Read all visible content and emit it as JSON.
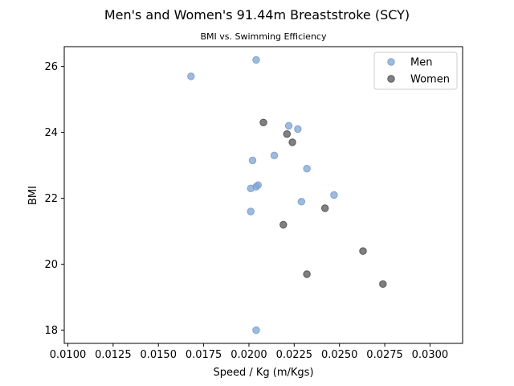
{
  "chart_data": {
    "type": "scatter",
    "title": "Men's and Women's 91.44m Breaststroke (SCY)",
    "subtitle": "BMI vs. Swimming Efficiency",
    "xlabel": "Speed / Kg (m/Kgs)",
    "ylabel": "BMI",
    "xlim": [
      0.0098,
      0.0318
    ],
    "ylim": [
      17.6,
      26.6
    ],
    "xticks": [
      0.01,
      0.0125,
      0.015,
      0.0175,
      0.02,
      0.0225,
      0.025,
      0.0275,
      0.03
    ],
    "xtick_labels": [
      "0.0100",
      "0.0125",
      "0.0150",
      "0.0175",
      "0.0200",
      "0.0225",
      "0.0250",
      "0.0275",
      "0.0300"
    ],
    "yticks": [
      18,
      20,
      22,
      24,
      26
    ],
    "ytick_labels": [
      "18",
      "20",
      "22",
      "24",
      "26"
    ],
    "grid": false,
    "legend_position": "top-right",
    "series": [
      {
        "name": "Men",
        "color": "#7fa3d1",
        "points": [
          {
            "x": 0.0168,
            "y": 25.7
          },
          {
            "x": 0.0204,
            "y": 26.2
          },
          {
            "x": 0.0222,
            "y": 24.2
          },
          {
            "x": 0.0227,
            "y": 24.1
          },
          {
            "x": 0.0214,
            "y": 23.3
          },
          {
            "x": 0.0202,
            "y": 23.15
          },
          {
            "x": 0.0232,
            "y": 22.9
          },
          {
            "x": 0.0205,
            "y": 22.4
          },
          {
            "x": 0.0204,
            "y": 22.35
          },
          {
            "x": 0.0201,
            "y": 22.3
          },
          {
            "x": 0.0247,
            "y": 22.1
          },
          {
            "x": 0.0229,
            "y": 21.9
          },
          {
            "x": 0.0201,
            "y": 21.6
          },
          {
            "x": 0.0204,
            "y": 18.0
          }
        ]
      },
      {
        "name": "Women",
        "color": "#555555",
        "points": [
          {
            "x": 0.0208,
            "y": 24.3
          },
          {
            "x": 0.0221,
            "y": 23.95
          },
          {
            "x": 0.0224,
            "y": 23.7
          },
          {
            "x": 0.0242,
            "y": 21.7
          },
          {
            "x": 0.0219,
            "y": 21.2
          },
          {
            "x": 0.0263,
            "y": 20.4
          },
          {
            "x": 0.0232,
            "y": 19.7
          },
          {
            "x": 0.0274,
            "y": 19.4
          }
        ]
      }
    ]
  }
}
